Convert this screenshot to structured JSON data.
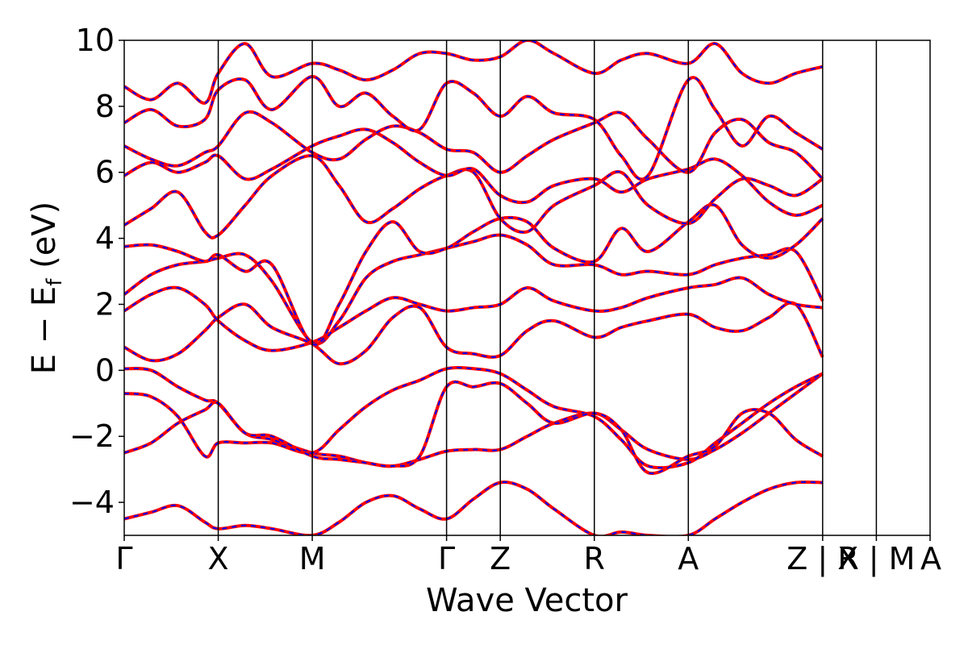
{
  "chart_data": {
    "type": "line",
    "xlabel": "Wave Vector",
    "ylabel": "E − E",
    "ylabel_sub": "f",
    "ylabel_unit": " (eV)",
    "ylim": [
      -5,
      10
    ],
    "yticks": [
      -4,
      -2,
      0,
      2,
      4,
      6,
      8,
      10
    ],
    "ytick_labels": [
      "−4",
      "−2",
      "0",
      "2",
      "4",
      "6",
      "8",
      "10"
    ],
    "xlim": [
      0,
      6.0
    ],
    "kpoints": [
      {
        "label": "Γ",
        "x": 0.0
      },
      {
        "label": "X",
        "x": 0.7
      },
      {
        "label": "M",
        "x": 1.4
      },
      {
        "label": "Γ",
        "x": 2.4
      },
      {
        "label": "Z",
        "x": 2.8
      },
      {
        "label": "R",
        "x": 3.5
      },
      {
        "label": "A",
        "x": 4.2
      },
      {
        "label": "Z | X",
        "x": 5.2
      },
      {
        "label": "R | M",
        "x": 5.6
      },
      {
        "label": "A",
        "x": 6.0
      }
    ],
    "grid": false,
    "colors": {
      "band_solid": "#ff0000",
      "band_dashed": "#0000ff",
      "frame": "#000000"
    },
    "series": [
      {
        "x": [
          0,
          0.2,
          0.4,
          0.6,
          0.7,
          0.9,
          1.1,
          1.4,
          1.6,
          1.8,
          2.0,
          2.2,
          2.4,
          2.6,
          2.8,
          3.0,
          3.2,
          3.5,
          3.7,
          3.9,
          4.2,
          4.4,
          4.6,
          4.8,
          5.0,
          5.2
        ],
        "values": [
          0.05,
          0.0,
          -0.5,
          -0.9,
          -1.0,
          -1.9,
          -2.1,
          -2.5,
          -2.6,
          -2.8,
          -2.9,
          -2.7,
          -2.45,
          -2.4,
          -2.4,
          -2.0,
          -1.6,
          -1.3,
          -1.8,
          -2.4,
          -2.7,
          -2.4,
          -1.9,
          -1.3,
          -0.7,
          -0.1
        ]
      },
      {
        "x": [
          0,
          0.2,
          0.4,
          0.6,
          0.7,
          0.9,
          1.1,
          1.4,
          1.6,
          1.8,
          2.0,
          2.2,
          2.4,
          2.6,
          2.8,
          3.0,
          3.2,
          3.5,
          3.7,
          3.9,
          4.2,
          4.4,
          4.6,
          4.8,
          5.0,
          5.2
        ],
        "values": [
          -0.7,
          -0.8,
          -1.4,
          -2.6,
          -2.2,
          -2.2,
          -2.2,
          -2.5,
          -1.8,
          -1.1,
          -0.6,
          -0.3,
          0.05,
          0.05,
          -0.1,
          -0.6,
          -1.1,
          -1.4,
          -2.1,
          -2.9,
          -2.8,
          -2.2,
          -1.6,
          -1.0,
          -0.5,
          -0.1
        ]
      },
      {
        "x": [
          0,
          0.2,
          0.4,
          0.6,
          0.7,
          0.9,
          1.1,
          1.4,
          1.6,
          1.8,
          2.0,
          2.2,
          2.4,
          2.6,
          2.8,
          3.0,
          3.2,
          3.5,
          3.7,
          3.9,
          4.2,
          4.4,
          4.6,
          4.8,
          5.0,
          5.2
        ],
        "values": [
          -2.5,
          -2.2,
          -1.6,
          -1.2,
          -1.0,
          -1.9,
          -2.0,
          -2.6,
          -2.7,
          -2.8,
          -2.9,
          -2.6,
          -0.5,
          -0.5,
          -0.4,
          -1.0,
          -1.6,
          -1.3,
          -1.8,
          -3.1,
          -2.6,
          -2.3,
          -1.3,
          -1.3,
          -2.1,
          -2.6
        ]
      },
      {
        "x": [
          0,
          0.2,
          0.4,
          0.6,
          0.7,
          0.9,
          1.1,
          1.4,
          1.6,
          1.8,
          2.0,
          2.2,
          2.4,
          2.6,
          2.8,
          3.0,
          3.2,
          3.5,
          3.7,
          3.9,
          4.2,
          4.4,
          4.6,
          4.8,
          5.0,
          5.2
        ],
        "values": [
          -4.5,
          -4.3,
          -4.1,
          -4.6,
          -4.8,
          -4.7,
          -4.8,
          -5.0,
          -4.6,
          -4.0,
          -3.8,
          -4.2,
          -4.5,
          -3.9,
          -3.4,
          -3.6,
          -4.2,
          -5.0,
          -4.9,
          -5.0,
          -5.0,
          -4.5,
          -4.0,
          -3.6,
          -3.4,
          -3.4
        ]
      },
      {
        "x": [
          0,
          0.2,
          0.4,
          0.6,
          0.7,
          0.9,
          1.1,
          1.4,
          1.6,
          1.8,
          2.0,
          2.2,
          2.4,
          2.6,
          2.8,
          3.0,
          3.2,
          3.5,
          3.7,
          3.9,
          4.2,
          4.4,
          4.6,
          4.8,
          5.0,
          5.2
        ],
        "values": [
          0.7,
          0.3,
          0.5,
          1.2,
          1.6,
          2.0,
          1.3,
          0.8,
          0.2,
          0.6,
          1.6,
          1.9,
          0.7,
          0.5,
          0.45,
          1.2,
          1.5,
          1.0,
          1.3,
          1.5,
          1.7,
          1.3,
          1.2,
          1.6,
          2.0,
          0.4
        ]
      },
      {
        "x": [
          0,
          0.2,
          0.4,
          0.6,
          0.7,
          0.9,
          1.1,
          1.4,
          1.6,
          1.8,
          2.0,
          2.2,
          2.4,
          2.6,
          2.8,
          3.0,
          3.2,
          3.5,
          3.7,
          3.9,
          4.2,
          4.4,
          4.6,
          4.8,
          5.0,
          5.2
        ],
        "values": [
          1.8,
          2.3,
          2.5,
          2.0,
          1.5,
          0.9,
          0.6,
          0.85,
          1.3,
          1.8,
          2.2,
          2.0,
          1.8,
          1.9,
          2.0,
          2.5,
          2.1,
          1.8,
          1.9,
          2.2,
          2.5,
          2.6,
          2.8,
          2.3,
          2.0,
          1.9
        ]
      },
      {
        "x": [
          0,
          0.2,
          0.4,
          0.6,
          0.7,
          0.9,
          1.1,
          1.4,
          1.6,
          1.8,
          2.0,
          2.2,
          2.4,
          2.6,
          2.8,
          3.0,
          3.2,
          3.5,
          3.7,
          3.9,
          4.2,
          4.4,
          4.6,
          4.8,
          5.0,
          5.2
        ],
        "values": [
          2.3,
          2.9,
          3.2,
          3.3,
          3.4,
          3.5,
          2.7,
          0.85,
          1.5,
          2.8,
          3.3,
          3.5,
          3.7,
          3.9,
          4.1,
          3.8,
          3.2,
          3.2,
          2.9,
          3.0,
          2.9,
          3.2,
          3.4,
          3.5,
          3.6,
          2.1
        ]
      },
      {
        "x": [
          0,
          0.2,
          0.4,
          0.6,
          0.7,
          0.9,
          1.1,
          1.4,
          1.6,
          1.8,
          2.0,
          2.2,
          2.4,
          2.6,
          2.8,
          3.0,
          3.2,
          3.5,
          3.7,
          3.9,
          4.2,
          4.4,
          4.6,
          4.8,
          5.0,
          5.2
        ],
        "values": [
          3.75,
          3.8,
          3.6,
          3.3,
          3.5,
          3.0,
          3.2,
          0.8,
          2.0,
          3.6,
          4.5,
          3.6,
          3.7,
          4.2,
          4.6,
          4.5,
          3.7,
          3.3,
          4.3,
          3.6,
          4.5,
          5.0,
          3.8,
          3.4,
          3.8,
          4.6
        ]
      },
      {
        "x": [
          0,
          0.2,
          0.4,
          0.6,
          0.7,
          0.9,
          1.1,
          1.4,
          1.6,
          1.8,
          2.0,
          2.2,
          2.4,
          2.6,
          2.8,
          3.0,
          3.2,
          3.5,
          3.7,
          3.9,
          4.2,
          4.4,
          4.6,
          4.8,
          5.0,
          5.2
        ],
        "values": [
          4.4,
          4.9,
          5.4,
          4.2,
          4.1,
          5.0,
          5.9,
          6.5,
          5.6,
          4.5,
          4.9,
          5.5,
          5.9,
          6.0,
          4.6,
          4.2,
          5.0,
          5.6,
          6.0,
          5.0,
          4.45,
          5.2,
          5.8,
          5.6,
          5.3,
          5.8
        ]
      },
      {
        "x": [
          0,
          0.2,
          0.4,
          0.6,
          0.7,
          0.9,
          1.1,
          1.4,
          1.6,
          1.8,
          2.0,
          2.2,
          2.4,
          2.6,
          2.8,
          3.0,
          3.2,
          3.5,
          3.7,
          3.9,
          4.2,
          4.4,
          4.6,
          4.8,
          5.0,
          5.2
        ],
        "values": [
          5.9,
          6.3,
          6.0,
          6.3,
          6.5,
          5.8,
          6.1,
          6.8,
          7.1,
          7.3,
          6.9,
          6.3,
          5.9,
          6.1,
          5.3,
          5.1,
          5.6,
          5.8,
          5.4,
          5.8,
          6.1,
          6.4,
          5.9,
          5.1,
          4.7,
          5.0
        ]
      },
      {
        "x": [
          0,
          0.2,
          0.4,
          0.6,
          0.7,
          0.9,
          1.1,
          1.4,
          1.6,
          1.8,
          2.0,
          2.2,
          2.4,
          2.6,
          2.8,
          3.0,
          3.2,
          3.5,
          3.7,
          3.9,
          4.2,
          4.4,
          4.6,
          4.8,
          5.0,
          5.2
        ],
        "values": [
          6.8,
          6.4,
          6.2,
          6.6,
          6.8,
          7.8,
          7.5,
          6.6,
          6.4,
          7.0,
          7.4,
          7.2,
          6.7,
          6.6,
          6.0,
          6.5,
          7.0,
          7.5,
          7.8,
          7.0,
          6.0,
          7.2,
          7.6,
          6.9,
          6.6,
          5.8
        ]
      },
      {
        "x": [
          0,
          0.2,
          0.4,
          0.6,
          0.7,
          0.9,
          1.1,
          1.4,
          1.6,
          1.8,
          2.0,
          2.2,
          2.4,
          2.6,
          2.8,
          3.0,
          3.2,
          3.5,
          3.7,
          3.9,
          4.2,
          4.4,
          4.6,
          4.8,
          5.0,
          5.2
        ],
        "values": [
          7.5,
          7.9,
          7.4,
          7.6,
          8.5,
          8.8,
          7.9,
          8.9,
          8.0,
          8.4,
          7.7,
          7.3,
          8.7,
          8.4,
          7.7,
          8.3,
          7.8,
          7.6,
          6.5,
          5.9,
          8.8,
          7.9,
          6.8,
          7.7,
          7.2,
          6.7
        ]
      },
      {
        "x": [
          0,
          0.2,
          0.4,
          0.6,
          0.7,
          0.9,
          1.1,
          1.4,
          1.6,
          1.8,
          2.0,
          2.2,
          2.4,
          2.6,
          2.8,
          3.0,
          3.2,
          3.5,
          3.7,
          3.9,
          4.2,
          4.4,
          4.6,
          4.8,
          5.0,
          5.2
        ],
        "values": [
          8.6,
          8.2,
          8.7,
          8.1,
          9.0,
          9.9,
          8.9,
          9.3,
          9.1,
          8.8,
          9.1,
          9.6,
          9.6,
          9.4,
          9.5,
          10.0,
          9.6,
          9.0,
          9.4,
          9.6,
          9.3,
          9.9,
          9.0,
          8.7,
          9.0,
          9.2
        ]
      }
    ]
  }
}
